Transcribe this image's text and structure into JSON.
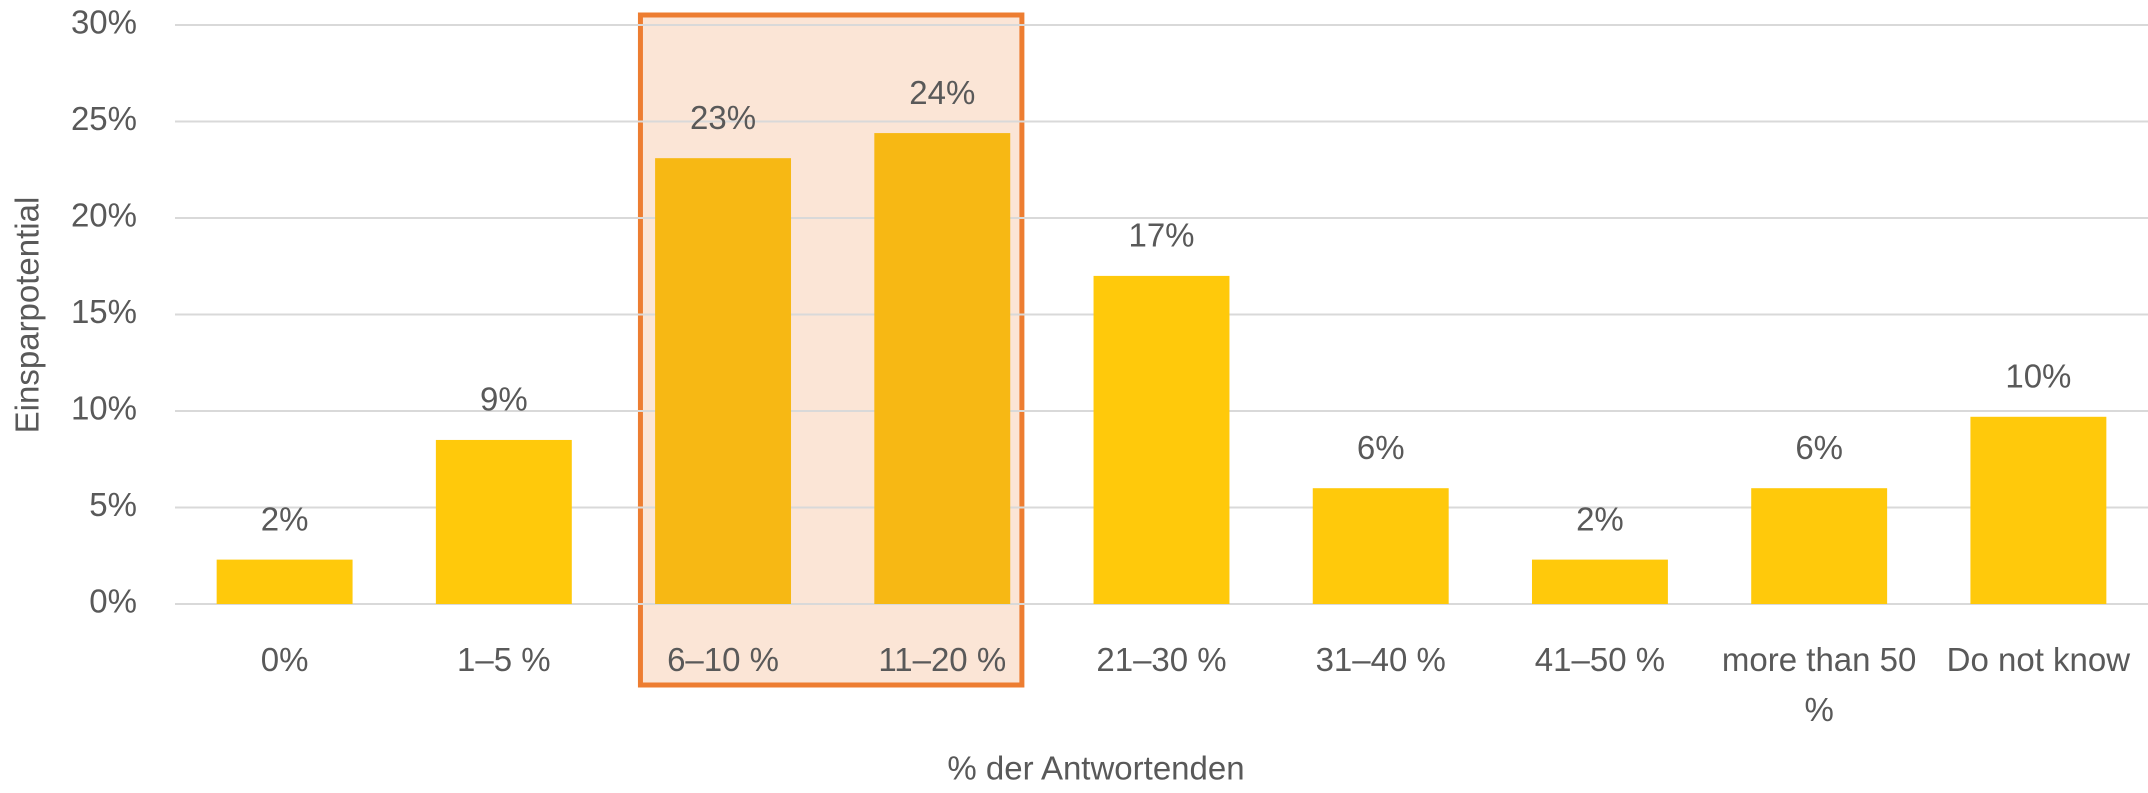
{
  "chart_data": {
    "type": "bar",
    "x_label": "% der Antwortenden",
    "y_label": "Einsparpotential",
    "categories": [
      "0%",
      "1–5 %",
      "6–10 %",
      "11–20 %",
      "21–30 %",
      "31–40 %",
      "41–50 %",
      "more than 50 %",
      "Do not know"
    ],
    "values": [
      2.3,
      8.5,
      23.1,
      24.4,
      17.0,
      6.0,
      2.3,
      6.0,
      9.7
    ],
    "value_labels": [
      "2%",
      "9%",
      "23%",
      "24%",
      "17%",
      "6%",
      "2%",
      "6%",
      "10%"
    ],
    "colors": [
      "#ffc90b",
      "#ffc90b",
      "#f7b814",
      "#f7b814",
      "#ffc90b",
      "#ffc90b",
      "#ffc90b",
      "#ffc90b",
      "#ffc90b"
    ],
    "ylim": [
      0,
      30
    ],
    "yticks": [
      {
        "value": 0,
        "label": "0%"
      },
      {
        "value": 5,
        "label": "5%"
      },
      {
        "value": 10,
        "label": "10%"
      },
      {
        "value": 15,
        "label": "15%"
      },
      {
        "value": 20,
        "label": "20%"
      },
      {
        "value": 25,
        "label": "25%"
      },
      {
        "value": 30,
        "label": "30%"
      }
    ],
    "grid": true
  }
}
